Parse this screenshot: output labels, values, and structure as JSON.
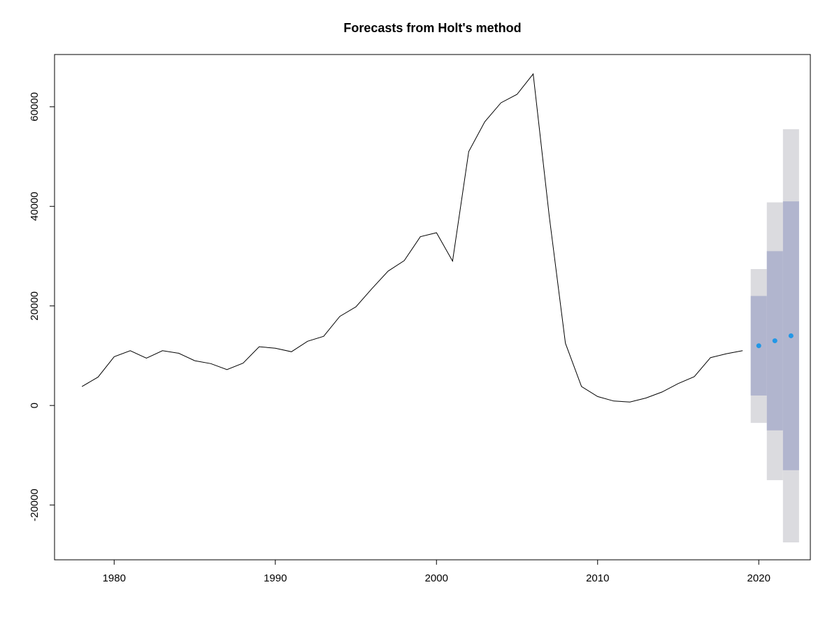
{
  "chart_data": {
    "type": "line",
    "title": "Forecasts from Holt's method",
    "xlabel": "",
    "ylabel": "",
    "xlim": [
      1976.3,
      2023.2
    ],
    "ylim": [
      -31000,
      70500
    ],
    "x_ticks": [
      1980,
      1990,
      2000,
      2010,
      2020
    ],
    "y_ticks": [
      -20000,
      0,
      20000,
      40000,
      60000
    ],
    "grid": false,
    "legend": "none",
    "series": [
      {
        "x": [
          1978,
          1979,
          1980,
          1981,
          1982,
          1983,
          1984,
          1985,
          1986,
          1987,
          1988,
          1989,
          1990,
          1991,
          1992,
          1993,
          1994,
          1995,
          1996,
          1997,
          1998,
          1999,
          2000,
          2001,
          2002,
          2003,
          2004,
          2005,
          2006,
          2007,
          2008,
          2009,
          2010,
          2011,
          2012,
          2013,
          2014,
          2015,
          2016,
          2017,
          2018,
          2019
        ],
        "y": [
          3800,
          5700,
          9800,
          11000,
          9500,
          11000,
          10500,
          9000,
          8400,
          7200,
          8500,
          11800,
          11500,
          10800,
          12900,
          13900,
          17900,
          19800,
          23500,
          27000,
          29100,
          33900,
          34700,
          29000,
          51000,
          57000,
          60800,
          62500,
          66600,
          38000,
          12500,
          3800,
          1800,
          900,
          700,
          1500,
          2700,
          4400,
          5800,
          9600,
          10400,
          11000
        ],
        "color": "#000000"
      }
    ],
    "forecast": {
      "x": [
        2020,
        2021,
        2022
      ],
      "point": [
        12000,
        13000,
        14000
      ],
      "lo80": [
        2000,
        -5000,
        -13000
      ],
      "hi80": [
        22000,
        31000,
        41000
      ],
      "lo95": [
        -3500,
        -15000,
        -27500
      ],
      "hi95": [
        27400,
        40800,
        55500
      ],
      "point_color": "#2297e6",
      "band80_color": "#b1b5ce",
      "band95_color": "#dbdbdf"
    }
  }
}
